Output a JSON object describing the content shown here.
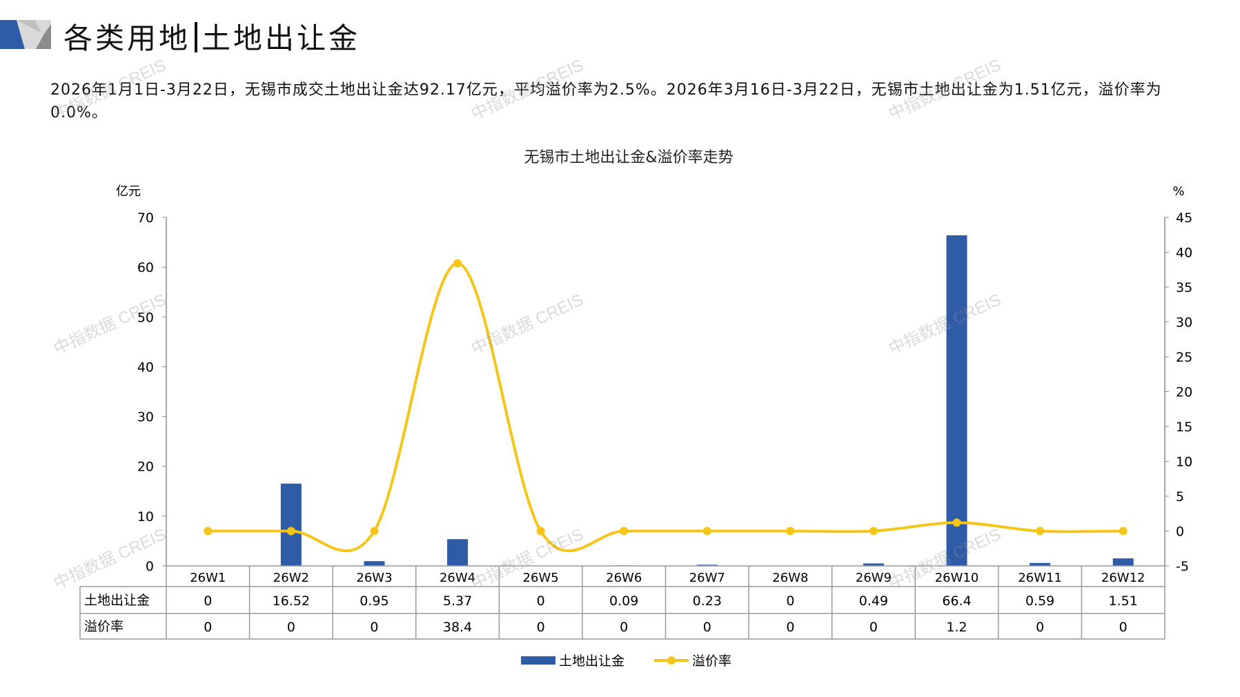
{
  "header": {
    "title_left": "各类用地",
    "title_right": "土地出让金"
  },
  "summary": "2026年1月1日-3月22日，无锡市成交土地出让金达92.17亿元，平均溢价率为2.5%。2026年3月16日-3月22日，无锡市土地出让金为1.51亿元，溢价率为0.0%。",
  "watermark": "中指数据 CREIS",
  "chart_data": {
    "type": "bar+line",
    "title": "无锡市土地出让金&溢价率走势",
    "categories": [
      "26W1",
      "26W2",
      "26W3",
      "26W4",
      "26W5",
      "26W6",
      "26W7",
      "26W8",
      "26W9",
      "26W10",
      "26W11",
      "26W12"
    ],
    "y_left": {
      "label": "亿元",
      "range": [
        0,
        70
      ],
      "ticks": [
        "0",
        "10",
        "20",
        "30",
        "40",
        "50",
        "60",
        "70"
      ]
    },
    "y_right": {
      "label": "%",
      "range": [
        -5,
        45
      ],
      "ticks": [
        "-5",
        "0",
        "5",
        "10",
        "15",
        "20",
        "25",
        "30",
        "35",
        "40",
        "45"
      ]
    },
    "series": [
      {
        "name": "土地出让金",
        "type": "bar",
        "axis": "left",
        "color": "#2F5BA7",
        "values": [
          0,
          16.52,
          0.95,
          5.37,
          0,
          0.09,
          0.23,
          0,
          0.49,
          66.4,
          0.59,
          1.51
        ],
        "labels": [
          "0",
          "16.52",
          "0.95",
          "5.37",
          "0",
          "0.09",
          "0.23",
          "0",
          "0.49",
          "66.4",
          "0.59",
          "1.51"
        ]
      },
      {
        "name": "溢价率",
        "type": "line",
        "smooth": true,
        "axis": "right",
        "color": "#F5C518",
        "values": [
          0,
          0,
          0,
          38.4,
          0,
          0,
          0,
          0,
          0,
          1.2,
          0,
          0
        ],
        "labels": [
          "0",
          "0",
          "0",
          "38.4",
          "0",
          "0",
          "0",
          "0",
          "0",
          "1.2",
          "0",
          "0"
        ]
      }
    ],
    "data_table": true,
    "grid": false,
    "legend": "bottom"
  }
}
